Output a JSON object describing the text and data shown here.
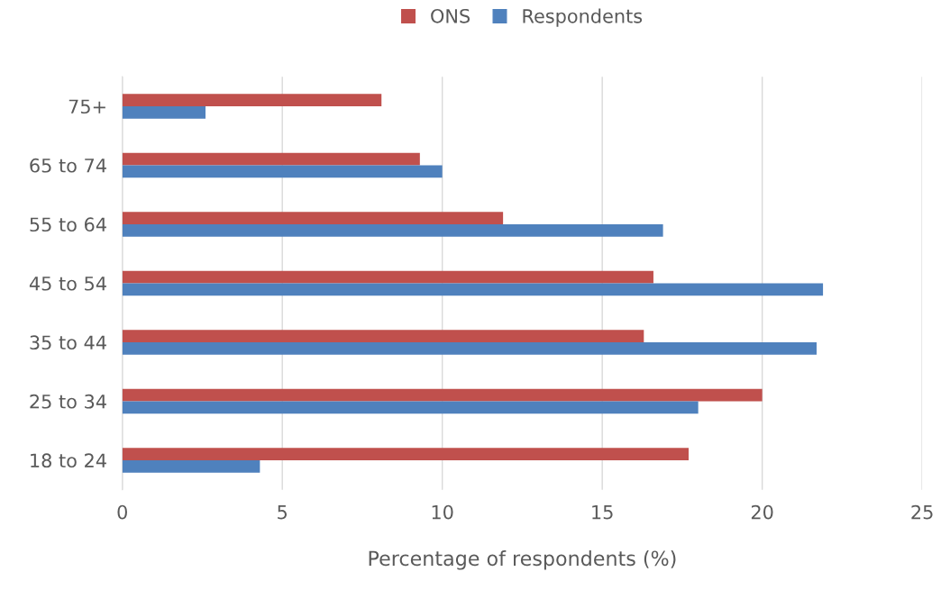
{
  "chart_data": {
    "type": "bar",
    "orientation": "horizontal",
    "xlabel": "Percentage of respondents (%)",
    "categories": [
      "75+",
      "65 to 74",
      "55 to 64",
      "45 to 54",
      "35 to 44",
      "25 to 34",
      "18 to 24"
    ],
    "series": [
      {
        "name": "ONS",
        "color": "#c0504d",
        "values": [
          8.1,
          9.3,
          11.9,
          16.6,
          16.3,
          20.0,
          17.7
        ]
      },
      {
        "name": "Respondents",
        "color": "#4f81bd",
        "values": [
          2.6,
          10.0,
          16.9,
          21.9,
          21.7,
          18.0,
          4.3
        ]
      }
    ],
    "xlim": [
      0,
      25
    ],
    "xticks": [
      0,
      5,
      10,
      15,
      20,
      25
    ],
    "grid": "x",
    "legend": "top"
  }
}
